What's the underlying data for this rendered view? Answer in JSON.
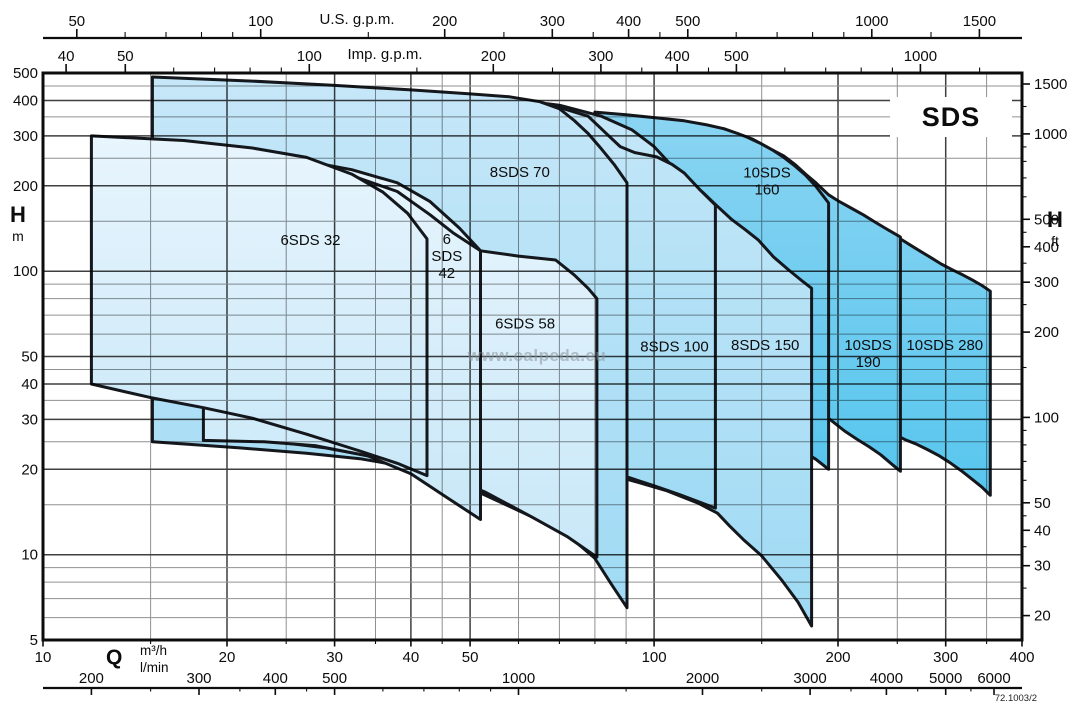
{
  "title": "SDS",
  "watermark": "www.calpeda.eu",
  "doc_number": "72.1003/2",
  "left_axis": {
    "symbol": "H",
    "unit": "m"
  },
  "right_axis": {
    "symbol": "H",
    "unit": "ft"
  },
  "flow_axis": {
    "symbol": "Q",
    "unit_primary": "m³/h",
    "unit_secondary": "l/min"
  },
  "top_axis_titles": {
    "us": "U.S. g.p.m.",
    "imp": "Imp. g.p.m."
  },
  "colors": {
    "outline": "#14171c",
    "grid_major": "#3f3f3f",
    "grid_minor": "#909090",
    "fill_light_hi": "#e8f5fd",
    "fill_light_lo": "#c9e8f8",
    "fill_mid_hi": "#c6e7f8",
    "fill_mid_lo": "#9fdaf4",
    "fill_dark_hi": "#8ad4f2",
    "fill_dark_lo": "#58c6ee"
  },
  "chart_data": {
    "type": "area",
    "title": "SDS",
    "description": "Pump selection chart: head H (m / ft, log scale 5-500 m) vs flow Q (m3/h / l/min / US gpm / Imp gpm, log scale 10-400 m3/h). Each area is the operating envelope of one pump family.",
    "x_axis": {
      "unit": "m³/h",
      "range": [
        10,
        400
      ],
      "majors": [
        10,
        20,
        30,
        40,
        50,
        100,
        200,
        300,
        400
      ],
      "minors": [
        15,
        25,
        35,
        45,
        60,
        70,
        80,
        90,
        150,
        250,
        350
      ]
    },
    "y_axis": {
      "unit": "m",
      "range": [
        5,
        500
      ],
      "majors": [
        5,
        10,
        20,
        30,
        40,
        50,
        100,
        200,
        300,
        400,
        500
      ],
      "minors": [
        6,
        7,
        8,
        9,
        15,
        25,
        35,
        45,
        60,
        70,
        80,
        90,
        150,
        250,
        350,
        450
      ]
    },
    "secondary_axes": {
      "us_gpm": {
        "title": "U.S. g.p.m.",
        "factor_per_m3h": 4.4029,
        "majors": [
          50,
          100,
          200,
          300,
          400,
          500,
          1000,
          1500
        ],
        "minors": [
          60,
          70,
          80,
          90,
          150,
          250,
          350,
          450,
          600,
          700,
          800,
          900,
          1250
        ]
      },
      "imp_gpm": {
        "title": "Imp. g.p.m.",
        "factor_per_m3h": 3.6662,
        "majors": [
          40,
          50,
          100,
          200,
          300,
          400,
          500,
          1000
        ],
        "minors": [
          60,
          70,
          80,
          90,
          150,
          250,
          350,
          450,
          600,
          700,
          800,
          900,
          1250
        ]
      },
      "l_min": {
        "title": "l/min",
        "factor_per_m3h": 16.6667,
        "majors": [
          200,
          300,
          400,
          500,
          1000,
          2000,
          3000,
          4000,
          5000,
          6000
        ],
        "minors": [
          250,
          350,
          450,
          600,
          700,
          800,
          900,
          1500,
          2500,
          3500,
          4500,
          5500
        ]
      },
      "ft": {
        "title": "ft",
        "factor_per_m": 3.2808,
        "majors": [
          20,
          30,
          40,
          50,
          100,
          200,
          300,
          400,
          500,
          1000,
          1500
        ],
        "minors": [
          25,
          35,
          45,
          60,
          70,
          80,
          90,
          150,
          250,
          350,
          450,
          600,
          700,
          800,
          900,
          1250
        ]
      }
    },
    "series": [
      {
        "name": "10SDS 280",
        "family": "dark",
        "label_lines": [
          "10SDS 280"
        ],
        "label_at": [
          299,
          55
        ],
        "polygon_QH": [
          [
            120,
            330
          ],
          [
            140,
            285
          ],
          [
            158,
            243
          ],
          [
            175,
            210
          ],
          [
            192,
            182
          ],
          [
            205,
            165
          ],
          [
            218,
            152
          ],
          [
            230,
            142
          ],
          [
            242,
            135
          ],
          [
            253,
            130
          ],
          [
            262,
            124
          ],
          [
            272,
            118
          ],
          [
            283,
            112
          ],
          [
            295,
            106
          ],
          [
            308,
            101
          ],
          [
            320,
            97
          ],
          [
            332,
            93
          ],
          [
            344,
            89
          ],
          [
            355,
            85
          ],
          [
            355,
            16.2
          ],
          [
            344,
            17.3
          ],
          [
            332,
            18.4
          ],
          [
            318,
            19.8
          ],
          [
            305,
            21.1
          ],
          [
            292,
            22.4
          ],
          [
            280,
            23.5
          ],
          [
            268,
            24.6
          ],
          [
            258,
            25.4
          ],
          [
            248,
            26.5
          ],
          [
            235,
            27.7
          ],
          [
            220,
            29.2
          ],
          [
            200,
            30.9
          ],
          [
            178,
            32.5
          ],
          [
            155,
            34.3
          ],
          [
            135,
            36.2
          ],
          [
            120,
            38
          ]
        ]
      },
      {
        "name": "10SDS 190",
        "family": "dark",
        "label_lines": [
          "10SDS",
          "190"
        ],
        "label_at": [
          224,
          51.5
        ],
        "polygon_QH": [
          [
            100,
            340
          ],
          [
            115,
            330
          ],
          [
            130,
            318
          ],
          [
            145,
            292
          ],
          [
            155,
            270
          ],
          [
            163,
            255
          ],
          [
            170,
            238
          ],
          [
            177,
            220
          ],
          [
            184,
            205
          ],
          [
            193,
            186
          ],
          [
            201,
            176
          ],
          [
            210,
            167
          ],
          [
            220,
            158
          ],
          [
            230,
            149
          ],
          [
            240,
            141
          ],
          [
            253,
            132
          ],
          [
            253,
            19.7
          ],
          [
            244,
            21
          ],
          [
            235,
            22.5
          ],
          [
            225,
            24
          ],
          [
            215,
            25.5
          ],
          [
            205,
            27.3
          ],
          [
            194,
            30
          ],
          [
            182,
            31.6
          ],
          [
            168,
            33.2
          ],
          [
            152,
            34.8
          ],
          [
            135,
            36.3
          ],
          [
            118,
            37.6
          ],
          [
            100,
            39
          ]
        ]
      },
      {
        "name": "10SDS 160",
        "family": "dark",
        "label_lines": [
          "10SDS",
          "160"
        ],
        "label_at": [
          153,
          209
        ],
        "polygon_QH": [
          [
            80,
            364
          ],
          [
            90,
            356
          ],
          [
            100,
            348
          ],
          [
            112,
            339
          ],
          [
            122,
            328
          ],
          [
            130,
            318
          ],
          [
            137,
            306
          ],
          [
            142,
            297
          ],
          [
            149,
            283
          ],
          [
            156,
            268
          ],
          [
            163,
            252
          ],
          [
            170,
            235
          ],
          [
            177,
            218
          ],
          [
            184,
            199
          ],
          [
            193,
            174
          ],
          [
            193,
            20
          ],
          [
            184,
            21.7
          ],
          [
            175,
            23.2
          ],
          [
            163,
            25.2
          ],
          [
            150,
            27
          ],
          [
            138,
            28.5
          ],
          [
            125,
            30
          ],
          [
            110,
            31.8
          ],
          [
            95,
            33.5
          ],
          [
            80,
            35
          ]
        ]
      },
      {
        "name": "8SDS 150",
        "family": "mid",
        "label_lines": [
          "8SDS 150"
        ],
        "label_at": [
          152,
          55
        ],
        "polygon_QH": [
          [
            25,
            450
          ],
          [
            40,
            428
          ],
          [
            55,
            410
          ],
          [
            70,
            385
          ],
          [
            82,
            352
          ],
          [
            92,
            315
          ],
          [
            100,
            275
          ],
          [
            106,
            240
          ],
          [
            113,
            212
          ],
          [
            120,
            190
          ],
          [
            126,
            172
          ],
          [
            134,
            152
          ],
          [
            141,
            140
          ],
          [
            148,
            129
          ],
          [
            157,
            112
          ],
          [
            166,
            101
          ],
          [
            174,
            93
          ],
          [
            181,
            87
          ],
          [
            181,
            5.6
          ],
          [
            172,
            6.8
          ],
          [
            162,
            8.1
          ],
          [
            150,
            9.9
          ],
          [
            140,
            11.3
          ],
          [
            133,
            12.6
          ],
          [
            127,
            14.0
          ],
          [
            118,
            15.2
          ],
          [
            105,
            16.8
          ],
          [
            90,
            18.5
          ],
          [
            70,
            20.7
          ],
          [
            50,
            22.2
          ],
          [
            35,
            23.2
          ],
          [
            25,
            23.8
          ]
        ]
      },
      {
        "name": "8SDS 100",
        "family": "mid",
        "label_lines": [
          "8SDS 100"
        ],
        "label_at": [
          108,
          54.2
        ],
        "polygon_QH": [
          [
            20,
            458
          ],
          [
            30,
            442
          ],
          [
            40,
            427
          ],
          [
            50,
            412
          ],
          [
            60,
            397
          ],
          [
            70,
            378
          ],
          [
            78,
            352
          ],
          [
            83,
            310
          ],
          [
            88,
            275
          ],
          [
            93,
            262
          ],
          [
            101,
            253
          ],
          [
            107,
            238
          ],
          [
            112,
            222
          ],
          [
            119,
            193
          ],
          [
            126,
            171
          ],
          [
            126,
            14.6
          ],
          [
            118,
            15.4
          ],
          [
            110,
            16.3
          ],
          [
            100,
            17.5
          ],
          [
            91,
            18.7
          ],
          [
            80,
            20
          ],
          [
            68,
            21.2
          ],
          [
            55,
            22.2
          ],
          [
            40,
            25.2
          ],
          [
            28,
            26
          ],
          [
            20,
            26.5
          ]
        ]
      },
      {
        "name": "8SDS 70",
        "family": "mid",
        "label_lines": [
          "8SDS 70"
        ],
        "label_at": [
          60.3,
          224
        ],
        "polygon_QH": [
          [
            15.1,
            484
          ],
          [
            22,
            468
          ],
          [
            30,
            452
          ],
          [
            40,
            436
          ],
          [
            50,
            422
          ],
          [
            58,
            412
          ],
          [
            65,
            396
          ],
          [
            70,
            374
          ],
          [
            74,
            340
          ],
          [
            78,
            306
          ],
          [
            82,
            270
          ],
          [
            86,
            238
          ],
          [
            90.3,
            205
          ],
          [
            90.3,
            6.5
          ],
          [
            85,
            7.9
          ],
          [
            80,
            9.7
          ],
          [
            72,
            11.8
          ],
          [
            65,
            13.2
          ],
          [
            58,
            14.8
          ],
          [
            52,
            16.5
          ],
          [
            46,
            18.3
          ],
          [
            40,
            20.3
          ],
          [
            33,
            21.8
          ],
          [
            27,
            22.8
          ],
          [
            21,
            23.8
          ],
          [
            15.1,
            25
          ]
        ]
      },
      {
        "name": "6SDS 58",
        "family": "light",
        "label_lines": [
          "6SDS 58"
        ],
        "label_at": [
          61.5,
          65.5
        ],
        "polygon_QH": [
          [
            20,
            262
          ],
          [
            26,
            248
          ],
          [
            32,
            228
          ],
          [
            38,
            205
          ],
          [
            43,
            176
          ],
          [
            48,
            142
          ],
          [
            52,
            118
          ],
          [
            60,
            113
          ],
          [
            69,
            109.5
          ],
          [
            74,
            97
          ],
          [
            78,
            87
          ],
          [
            80.6,
            80
          ],
          [
            80.6,
            9.8
          ],
          [
            72,
            11.6
          ],
          [
            63,
            13.6
          ],
          [
            53,
            16.6
          ],
          [
            45,
            19.2
          ],
          [
            37,
            21.6
          ],
          [
            29,
            23.8
          ],
          [
            24,
            25
          ],
          [
            20,
            26
          ]
        ]
      },
      {
        "name": "6SDS 42",
        "family": "light",
        "label_lines": [
          "6",
          "SDS",
          "42"
        ],
        "label_at": [
          45.8,
          113
        ],
        "polygon_QH": [
          [
            18.3,
            275
          ],
          [
            24,
            252
          ],
          [
            30,
            228
          ],
          [
            38,
            191
          ],
          [
            43,
            158
          ],
          [
            47,
            136
          ],
          [
            52,
            118
          ],
          [
            52,
            13.3
          ],
          [
            46,
            15.8
          ],
          [
            40,
            19.3
          ],
          [
            34,
            22.3
          ],
          [
            28,
            24.2
          ],
          [
            23,
            25
          ],
          [
            18.3,
            25.3
          ]
        ]
      },
      {
        "name": "6SDS 32",
        "family": "light",
        "label_lines": [
          "6SDS 32"
        ],
        "label_at": [
          27.4,
          129
        ],
        "polygon_QH": [
          [
            12,
            300
          ],
          [
            17,
            289
          ],
          [
            22,
            272
          ],
          [
            27,
            252
          ],
          [
            32,
            220
          ],
          [
            36,
            190
          ],
          [
            39.5,
            160
          ],
          [
            42.5,
            130
          ],
          [
            42.5,
            19
          ],
          [
            38,
            21.0
          ],
          [
            33,
            23.2
          ],
          [
            27,
            26.6
          ],
          [
            22,
            30.3
          ],
          [
            18.3,
            33.0
          ],
          [
            15,
            35.8
          ],
          [
            12,
            40
          ]
        ]
      }
    ]
  }
}
